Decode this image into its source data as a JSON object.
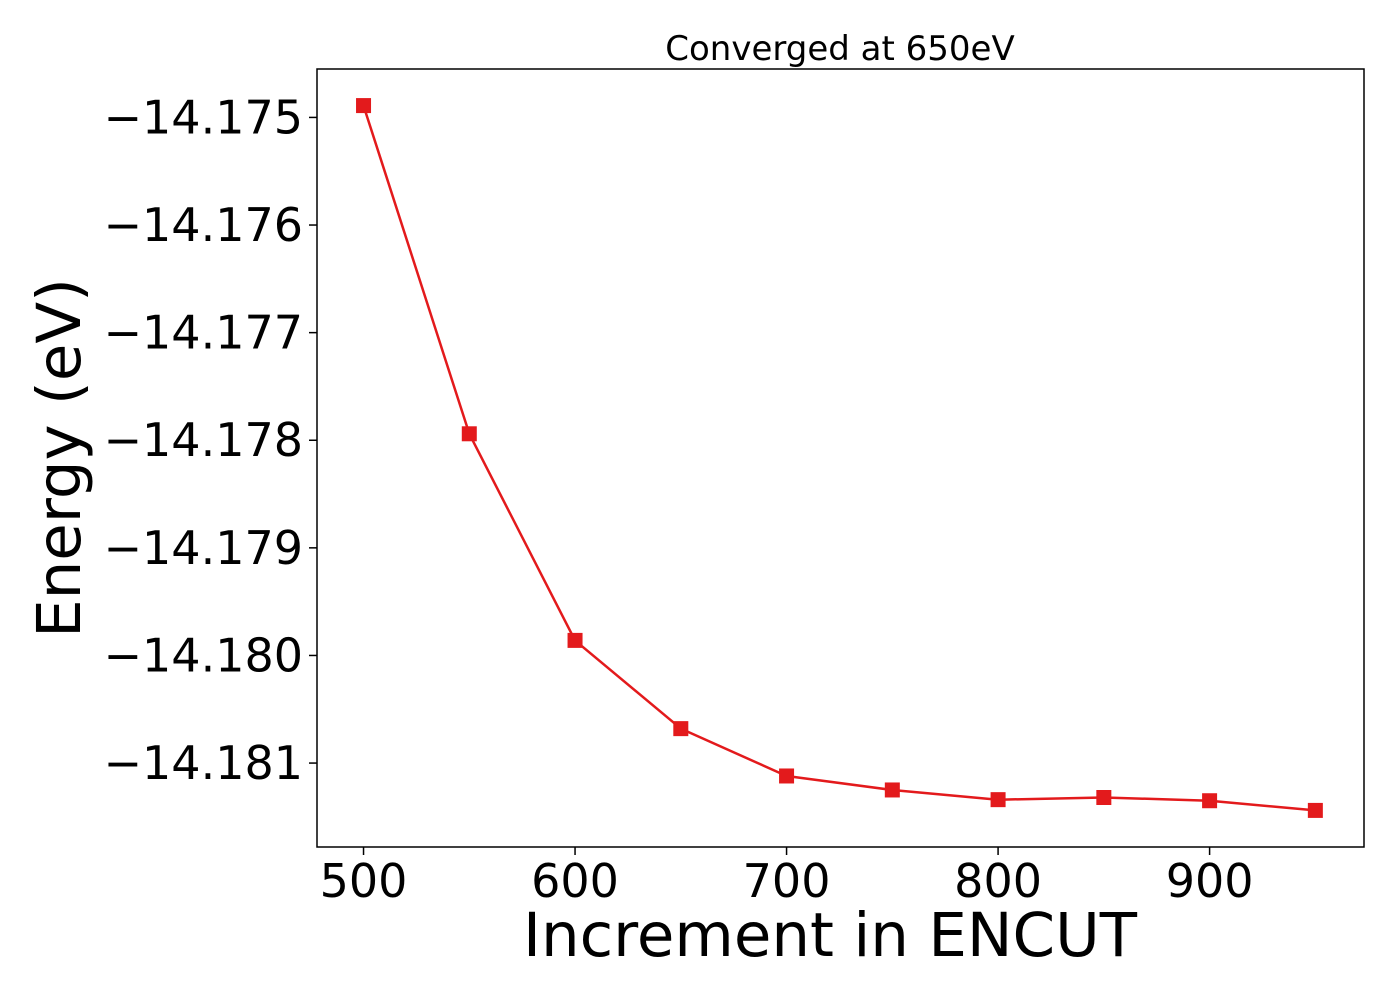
{
  "chart_data": {
    "type": "line",
    "title": "Converged at 650eV",
    "xlabel": "Increment in ENCUT",
    "ylabel": "Energy (eV)",
    "x": [
      500,
      550,
      600,
      650,
      700,
      750,
      800,
      850,
      900,
      950
    ],
    "series": [
      {
        "values": [
          -14.17489,
          -14.17794,
          -14.17986,
          -14.18068,
          -14.18112,
          -14.18125,
          -14.18134,
          -14.18132,
          -14.18135,
          -14.18144
        ],
        "color": "#e31a1c",
        "marker": "square"
      }
    ],
    "xlim": [
      478,
      973
    ],
    "ylim": [
      -14.18178,
      -14.17455
    ],
    "xticks": [
      500,
      600,
      700,
      800,
      900
    ],
    "xtick_labels": [
      "500",
      "600",
      "700",
      "800",
      "900"
    ],
    "yticks": [
      -14.175,
      -14.176,
      -14.177,
      -14.178,
      -14.179,
      -14.18,
      -14.181
    ],
    "ytick_labels": [
      "−14.175",
      "−14.176",
      "−14.177",
      "−14.178",
      "−14.179",
      "−14.180",
      "−14.181"
    ],
    "grid": false,
    "legend": "none"
  }
}
